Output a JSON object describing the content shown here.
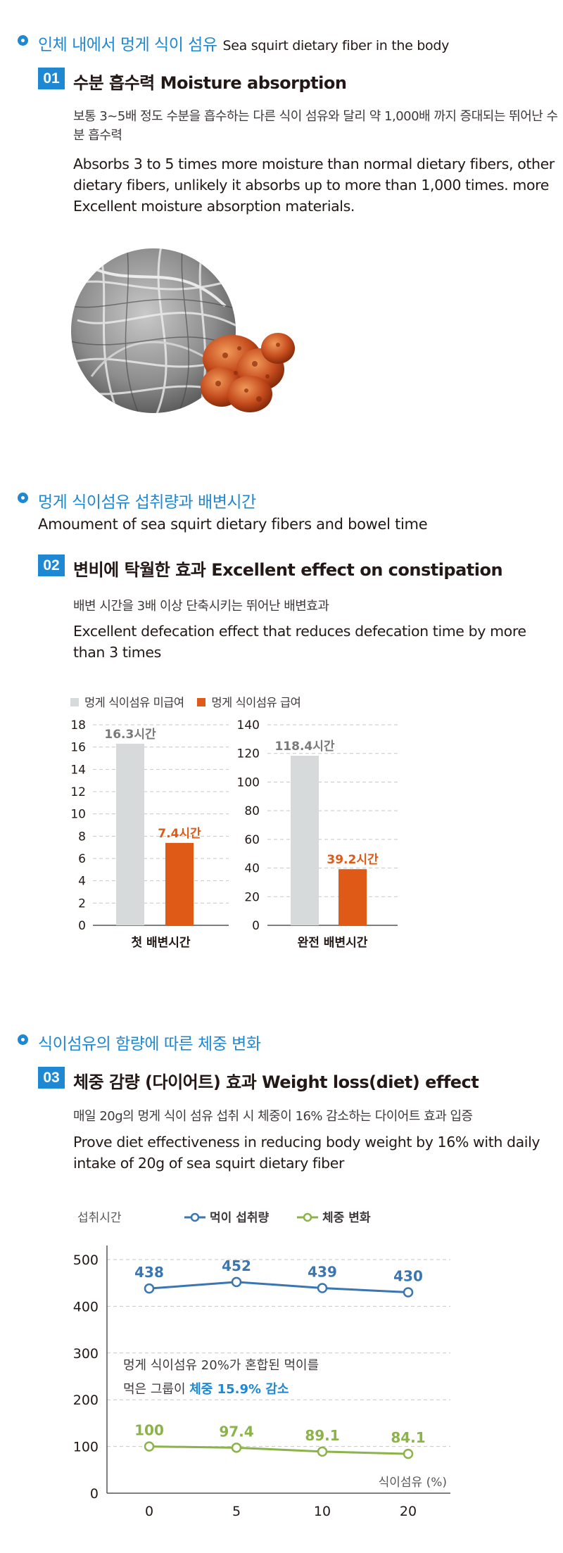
{
  "section1": {
    "title_ko": "인체 내에서 멍게 식이 섬유",
    "title_en": "Sea squirt dietary fiber in the body",
    "item": {
      "number": "01",
      "title": "수분 흡수력 Moisture absorption",
      "desc_ko": "보통 3~5배 정도 수분을 흡수하는 다른 식이 섬유와 달리 약 1,000배 까지 증대되는 뛰어난 수분 흡수력",
      "desc_en": "Absorbs 3 to 5 times more moisture than normal dietary fibers, other dietary fibers, unlikely it absorbs up to more than 1,000 times. more Excellent moisture absorption materials."
    }
  },
  "section2": {
    "title_ko": "멍게 식이섬유 섭취량과 배변시간",
    "subtitle_en": "Amoument of sea squirt dietary fibers and bowel time",
    "item": {
      "number": "02",
      "title": "변비에 탁월한 효과 Excellent effect on constipation",
      "desc_ko": "배변 시간을 3배 이상 단축시키는 뛰어난 배변효과",
      "desc_en": "Excellent defecation effect that reduces defecation time by more than 3 times"
    },
    "legend": [
      "멍게 식이섬유 미급여",
      "멍게 식이섬유 급여"
    ]
  },
  "section3": {
    "title_ko": "식이섬유의 함량에 따른 체중 변화",
    "item": {
      "number": "03",
      "title": "체중 감량 (다이어트) 효과 Weight loss(diet) effect",
      "desc_ko": "매일 20g의 멍게 식이 섬유 섭취 시 체중이 16% 감소하는 다이어트 효과 입증",
      "desc_en": "Prove diet effectiveness in reducing body weight by 16% with daily intake of 20g of sea squirt dietary fiber"
    }
  },
  "colors": {
    "blue": "#1e88d2",
    "gray_bar": "#d7dadb",
    "orange_bar": "#e05a17",
    "line_blue": "#3a76b2",
    "line_green": "#8cb34a"
  },
  "chart_data": [
    {
      "type": "bar",
      "categories": [
        "첫 배변시간"
      ],
      "series": [
        {
          "name": "멍게 식이섬유 미급여",
          "values": [
            16.3
          ],
          "labels": [
            "16.3시간"
          ]
        },
        {
          "name": "멍게 식이섬유 급여",
          "values": [
            7.4
          ],
          "labels": [
            "7.4시간"
          ]
        }
      ],
      "xlabel": "첫 배변시간",
      "ylim": [
        0,
        18
      ],
      "yticks": [
        0,
        2,
        4,
        6,
        8,
        10,
        12,
        14,
        16,
        18
      ],
      "grid": true
    },
    {
      "type": "bar",
      "categories": [
        "완전 배변시간"
      ],
      "series": [
        {
          "name": "멍게 식이섬유 미급여",
          "values": [
            118.4
          ],
          "labels": [
            "118.4시간"
          ]
        },
        {
          "name": "멍게 식이섬유 급여",
          "values": [
            39.2
          ],
          "labels": [
            "39.2시간"
          ]
        }
      ],
      "xlabel": "완전 배변시간",
      "ylim": [
        0,
        140
      ],
      "yticks": [
        0,
        20,
        40,
        60,
        80,
        100,
        120,
        140
      ],
      "grid": true
    },
    {
      "type": "line",
      "x": [
        0,
        5,
        10,
        20
      ],
      "x_ticks": [
        "0",
        "5",
        "10",
        "20"
      ],
      "xlabel": "식이섬유 (%)",
      "ylabel": "섭취시간",
      "ylim": [
        0,
        500
      ],
      "yticks": [
        0,
        100,
        200,
        300,
        400,
        500
      ],
      "legend": "top",
      "grid": true,
      "series": [
        {
          "name": "먹이 섭취량",
          "values": [
            438,
            452,
            439,
            430
          ],
          "labels": [
            "438",
            "452",
            "439",
            "430"
          ],
          "color": "#3a76b2"
        },
        {
          "name": "체중 변화",
          "values": [
            100,
            97.4,
            89.1,
            84.1
          ],
          "labels": [
            "100",
            "97.4",
            "89.1",
            "84.1"
          ],
          "color": "#8cb34a"
        }
      ],
      "annotation": {
        "line1": "멍게 식이섬유 20%가 혼합된 먹이를",
        "line2_prefix": "먹은 그룹이 ",
        "line2_highlight": "체중 15.9% 감소"
      }
    }
  ]
}
